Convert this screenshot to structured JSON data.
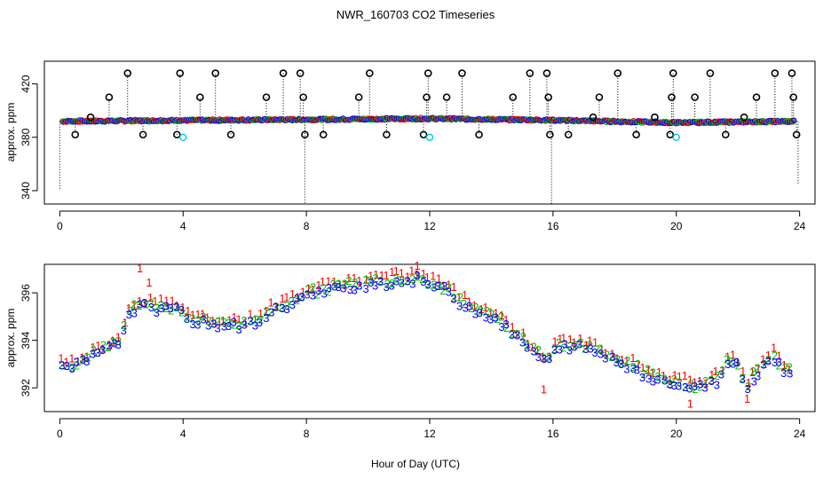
{
  "chart_data": {
    "title": "NWR_160703  CO2 Timeseries",
    "xlabel": "Hour of Day (UTC)",
    "panels": [
      {
        "id": "top",
        "type": "scatter",
        "ylabel": "approx. ppm",
        "xlim": [
          -0.5,
          24.5
        ],
        "ylim": [
          330,
          437
        ],
        "xticks": [
          0,
          4,
          8,
          12,
          16,
          20,
          24
        ],
        "yticks": [
          340,
          380,
          420
        ],
        "baseline_segments": [
          {
            "from": [
              0.1,
              392
            ],
            "to": [
              6,
              393
            ]
          },
          {
            "from": [
              6,
              393
            ],
            "to": [
              12,
              394
            ]
          },
          {
            "from": [
              12,
              394
            ],
            "to": [
              15.5,
              393
            ]
          },
          {
            "from": [
              15.5,
              393
            ],
            "to": [
              20,
              391
            ]
          },
          {
            "from": [
              20,
              391
            ],
            "to": [
              23.8,
              392
            ]
          }
        ],
        "outliers_high": [
          [
            1.6,
            410
          ],
          [
            2.2,
            428
          ],
          [
            3.9,
            428
          ],
          [
            4.55,
            410
          ],
          [
            5.05,
            428
          ],
          [
            6.7,
            410
          ],
          [
            7.25,
            428
          ],
          [
            7.8,
            428
          ],
          [
            7.9,
            410
          ],
          [
            9.7,
            410
          ],
          [
            10.05,
            428
          ],
          [
            11.9,
            410
          ],
          [
            11.95,
            428
          ],
          [
            12.55,
            410
          ],
          [
            13.05,
            428
          ],
          [
            14.7,
            410
          ],
          [
            15.25,
            428
          ],
          [
            15.8,
            428
          ],
          [
            15.85,
            410
          ],
          [
            17.5,
            410
          ],
          [
            18.1,
            428
          ],
          [
            19.85,
            410
          ],
          [
            19.9,
            428
          ],
          [
            20.6,
            410
          ],
          [
            21.1,
            428
          ],
          [
            22.6,
            410
          ],
          [
            23.2,
            428
          ],
          [
            23.75,
            428
          ],
          [
            23.8,
            410
          ]
        ],
        "outliers_low": [
          [
            0.5,
            382
          ],
          [
            1.0,
            395
          ],
          [
            2.7,
            382
          ],
          [
            3.8,
            382
          ],
          [
            5.55,
            382
          ],
          [
            7.95,
            382
          ],
          [
            8.55,
            382
          ],
          [
            10.6,
            382
          ],
          [
            11.8,
            382
          ],
          [
            13.6,
            382
          ],
          [
            15.9,
            382
          ],
          [
            16.5,
            382
          ],
          [
            17.3,
            395
          ],
          [
            18.7,
            382
          ],
          [
            19.3,
            395
          ],
          [
            19.8,
            382
          ],
          [
            21.6,
            382
          ],
          [
            22.2,
            395
          ],
          [
            23.9,
            382
          ]
        ],
        "outliers_cyan": [
          [
            4.0,
            380
          ],
          [
            12.0,
            380
          ],
          [
            20.0,
            380
          ]
        ],
        "drop_lines": [
          [
            0.0,
            340
          ],
          [
            7.95,
            330
          ],
          [
            15.95,
            330
          ],
          [
            23.95,
            345
          ]
        ]
      },
      {
        "id": "bottom",
        "type": "scatter",
        "ylabel": "approx. ppm",
        "xlim": [
          -0.5,
          24.5
        ],
        "ylim": [
          391,
          397.2
        ],
        "xticks": [
          0,
          4,
          8,
          12,
          16,
          20,
          24
        ],
        "yticks": [
          392,
          394,
          396
        ],
        "series": [
          {
            "name": "1",
            "color": "#ff0000"
          },
          {
            "name": "2",
            "color": "#00c000"
          },
          {
            "name": "3",
            "color": "#0000ff"
          }
        ],
        "profile_knots": [
          [
            0.0,
            393.0
          ],
          [
            0.3,
            392.9
          ],
          [
            1.0,
            393.4
          ],
          [
            1.5,
            393.7
          ],
          [
            2.0,
            394.1
          ],
          [
            2.2,
            395.2
          ],
          [
            2.6,
            395.6
          ],
          [
            3.0,
            395.5
          ],
          [
            3.5,
            395.4
          ],
          [
            3.9,
            395.4
          ],
          [
            4.2,
            395.0
          ],
          [
            4.8,
            394.8
          ],
          [
            5.4,
            394.8
          ],
          [
            6.0,
            394.7
          ],
          [
            6.5,
            395.0
          ],
          [
            7.0,
            395.4
          ],
          [
            7.5,
            395.7
          ],
          [
            8.0,
            396.0
          ],
          [
            9.0,
            396.3
          ],
          [
            10.0,
            396.5
          ],
          [
            11.0,
            396.6
          ],
          [
            11.6,
            396.7
          ],
          [
            12.0,
            396.5
          ],
          [
            12.6,
            396.2
          ],
          [
            13.0,
            395.7
          ],
          [
            13.5,
            395.4
          ],
          [
            14.2,
            395.0
          ],
          [
            14.8,
            394.3
          ],
          [
            15.2,
            393.8
          ],
          [
            15.6,
            393.4
          ],
          [
            15.8,
            393.1
          ],
          [
            16.1,
            393.8
          ],
          [
            16.5,
            393.9
          ],
          [
            17.0,
            393.8
          ],
          [
            17.5,
            393.6
          ],
          [
            18.0,
            393.3
          ],
          [
            18.5,
            393.0
          ],
          [
            19.0,
            392.7
          ],
          [
            19.5,
            392.4
          ],
          [
            20.0,
            392.3
          ],
          [
            20.5,
            392.1
          ],
          [
            21.0,
            392.2
          ],
          [
            21.4,
            392.5
          ],
          [
            21.6,
            393.2
          ],
          [
            21.9,
            393.3
          ],
          [
            22.1,
            392.8
          ],
          [
            22.3,
            392.0
          ],
          [
            22.5,
            392.6
          ],
          [
            22.8,
            393.0
          ],
          [
            23.0,
            393.3
          ],
          [
            23.2,
            393.4
          ],
          [
            23.4,
            393.0
          ],
          [
            23.8,
            392.6
          ]
        ],
        "red_dips": [
          [
            15.7,
            391.9
          ],
          [
            20.45,
            391.3
          ],
          [
            22.3,
            391.5
          ]
        ],
        "red_spikes": [
          [
            2.6,
            397.0
          ],
          [
            2.9,
            396.4
          ],
          [
            11.6,
            397.1
          ]
        ]
      }
    ]
  }
}
